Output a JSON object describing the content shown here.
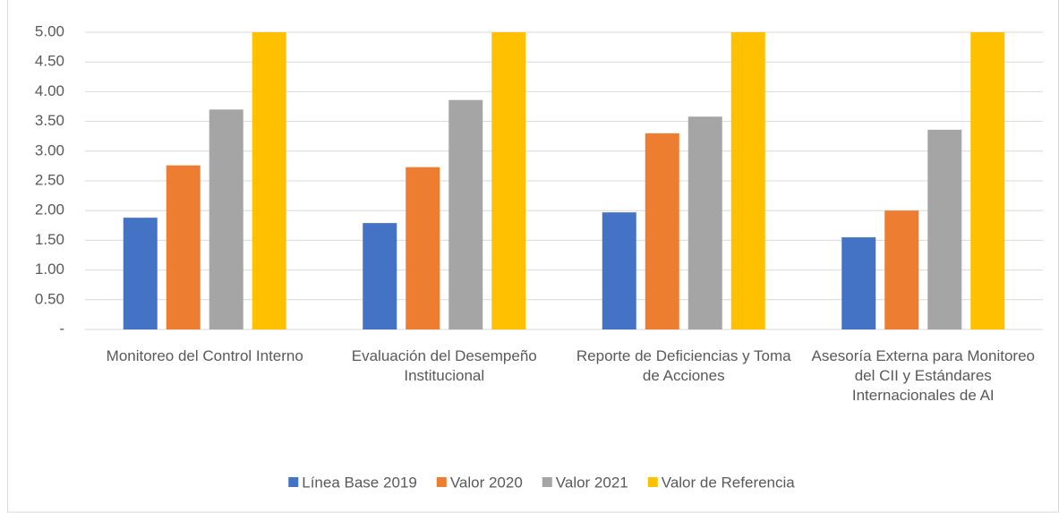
{
  "chart_data": {
    "type": "bar",
    "categories": [
      "Monitoreo del Control Interno",
      "Evaluación del Desempeño Institucional",
      "Reporte de Deficiencias y Toma de Acciones",
      "Asesoría Externa para Monitoreo del CII y Estándares Internacionales de AI"
    ],
    "series": [
      {
        "name": "Línea Base 2019",
        "color": "#4472c4",
        "values": [
          1.88,
          1.79,
          1.97,
          1.55
        ]
      },
      {
        "name": "Valor 2020",
        "color": "#ed7d31",
        "values": [
          2.76,
          2.73,
          3.3,
          2.0
        ]
      },
      {
        "name": "Valor 2021",
        "color": "#a5a5a5",
        "values": [
          3.7,
          3.86,
          3.58,
          3.36
        ]
      },
      {
        "name": "Valor de Referencia",
        "color": "#ffc000",
        "values": [
          5,
          5,
          5,
          5
        ]
      }
    ],
    "ylim": [
      0,
      5
    ],
    "yticks": [
      {
        "value": 0,
        "label": "-"
      },
      {
        "value": 0.5,
        "label": "0.50"
      },
      {
        "value": 1,
        "label": "1.00"
      },
      {
        "value": 1.5,
        "label": "1.50"
      },
      {
        "value": 2,
        "label": "2.00"
      },
      {
        "value": 2.5,
        "label": "2.50"
      },
      {
        "value": 3,
        "label": "3.00"
      },
      {
        "value": 3.5,
        "label": "3.50"
      },
      {
        "value": 4,
        "label": "4.00"
      },
      {
        "value": 4.5,
        "label": "4.50"
      },
      {
        "value": 5,
        "label": "5.00"
      }
    ],
    "grid": true,
    "legend": "bottom"
  }
}
